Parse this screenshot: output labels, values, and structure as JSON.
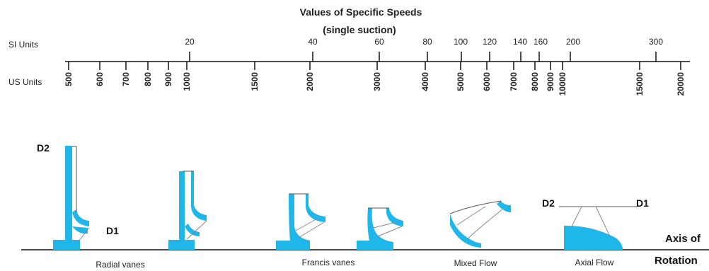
{
  "title_line1": "Values of Specific Speeds",
  "title_line2": "(single suction)",
  "si_label": "SI Units",
  "us_label": "US Units",
  "si_ticks": [
    "20",
    "40",
    "60",
    "80",
    "100",
    "120",
    "140",
    "160",
    "200",
    "300"
  ],
  "us_ticks": [
    "500",
    "600",
    "700",
    "800",
    "900",
    "1000",
    "1500",
    "2000",
    "3000",
    "4000",
    "5000",
    "6000",
    "7000",
    "8000",
    "9000",
    "10000",
    "15000",
    "20000"
  ],
  "labels": {
    "d2_left": "D2",
    "d1_left": "D1",
    "d2_axial": "D2",
    "d1_axial": "D1",
    "axis_line1": "Axis of",
    "axis_line2": "Rotation"
  },
  "captions": {
    "radial": "Radial vanes",
    "francis": "Francis vanes",
    "mixed": "Mixed Flow",
    "axial": "Axial Flow"
  },
  "colors": {
    "impeller": "#1fb6ea",
    "line": "#111111"
  }
}
